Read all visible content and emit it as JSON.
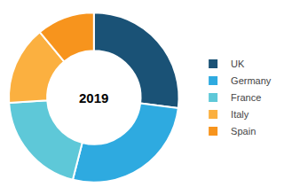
{
  "chart_data": {
    "type": "donut",
    "title": "2019",
    "categories": [
      "UK",
      "Germany",
      "France",
      "Italy",
      "Spain"
    ],
    "values": [
      27,
      27,
      20,
      15,
      11
    ],
    "colors": [
      "#1a5276",
      "#2eaae0",
      "#5ec8d8",
      "#fbb040",
      "#f7941d"
    ],
    "legend": "right"
  }
}
